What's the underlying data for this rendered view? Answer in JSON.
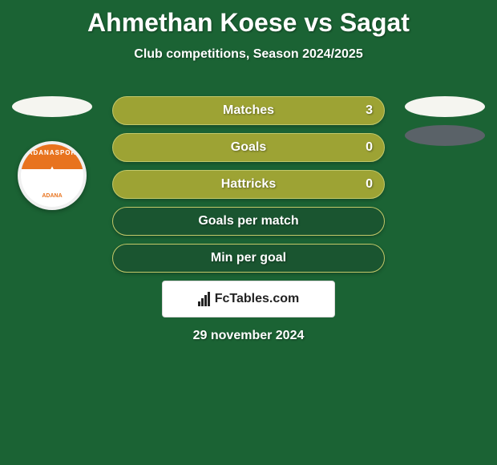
{
  "background_color": "#1b6334",
  "text_color": "#ffffff",
  "title": "Ahmethan Koese vs Sagat",
  "subtitle": "Club competitions, Season 2024/2025",
  "club_badge": {
    "top_text": "ADANASPOR",
    "bottom_text": "ADANA",
    "top_bg": "#e8731e",
    "bottom_bg": "#ffffff"
  },
  "left_ovals": [
    {
      "color": "#f5f5f0"
    }
  ],
  "right_ovals": [
    {
      "color": "#f5f5f0"
    },
    {
      "color": "#5a6268"
    }
  ],
  "bar_fill_color": "#9da334",
  "bar_empty_color": "#1a5530",
  "bar_border_color": "#c3c96a",
  "stats": [
    {
      "label": "Matches",
      "value": "3",
      "filled": true
    },
    {
      "label": "Goals",
      "value": "0",
      "filled": true
    },
    {
      "label": "Hattricks",
      "value": "0",
      "filled": true
    },
    {
      "label": "Goals per match",
      "value": "",
      "filled": false
    },
    {
      "label": "Min per goal",
      "value": "",
      "filled": false
    }
  ],
  "logo": {
    "text": "FcTables.com",
    "box_bg": "#ffffff",
    "box_border": "#d9d9d9",
    "icon_color": "#222222"
  },
  "date": "29 november 2024",
  "typography": {
    "title_fontsize": 32,
    "subtitle_fontsize": 16,
    "stat_fontsize": 16,
    "date_fontsize": 16
  }
}
